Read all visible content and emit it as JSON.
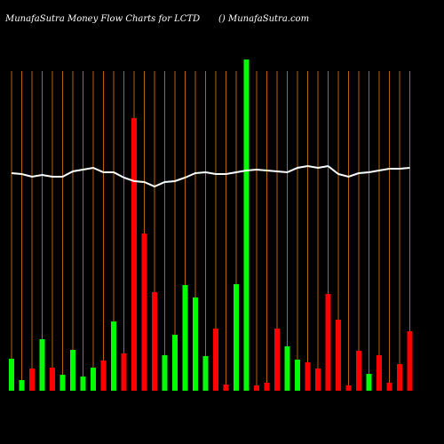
{
  "chart_data": {
    "type": "bar",
    "title": "MunafaSutra  Money Flow  Charts for LCTD",
    "subtitle": "() MunafaSutra.com",
    "categories": [
      null,
      null,
      null,
      null,
      null,
      null,
      null,
      null,
      null,
      null,
      null,
      null,
      null,
      null,
      null,
      null,
      null,
      null,
      null,
      null,
      null,
      null,
      null,
      null,
      null,
      null,
      null,
      null,
      null,
      null,
      null,
      null,
      null,
      null,
      null,
      null,
      null,
      null,
      null,
      null
    ],
    "values": [
      36,
      12,
      25,
      58,
      26,
      18,
      46,
      16,
      26,
      34,
      78,
      42,
      307,
      177,
      111,
      40,
      63,
      119,
      105,
      39,
      70,
      7,
      120,
      373,
      6,
      9,
      70,
      50,
      35,
      32,
      25,
      109,
      80,
      6,
      45,
      19,
      40,
      9,
      30,
      67
    ],
    "colors": [
      "#00ff00",
      "#00ff00",
      "#ff0000",
      "#00ff00",
      "#ff0000",
      "#00ff00",
      "#00ff00",
      "#00ff00",
      "#00ff00",
      "#ff0000",
      "#00ff00",
      "#ff0000",
      "#ff0000",
      "#ff0000",
      "#ff0000",
      "#00ff00",
      "#00ff00",
      "#00ff00",
      "#00ff00",
      "#00ff00",
      "#ff0000",
      "#ff0000",
      "#00ff00",
      "#00ff00",
      "#ff0000",
      "#ff0000",
      "#ff0000",
      "#00ff00",
      "#00ff00",
      "#ff0000",
      "#ff0000",
      "#ff0000",
      "#ff0000",
      "#ff0000",
      "#ff0000",
      "#00ff00",
      "#ff0000",
      "#ff0000",
      "#ff0000",
      "#ff0000"
    ],
    "line": [
      245,
      244,
      241,
      243,
      241,
      241,
      247,
      249,
      251,
      246,
      246,
      240,
      236,
      235,
      230,
      235,
      236,
      240,
      245,
      246,
      244,
      244,
      246,
      248,
      249,
      248,
      247,
      246,
      251,
      253,
      251,
      253,
      244,
      241,
      245,
      246,
      248,
      250,
      250,
      251
    ],
    "line_color": "#ffffff",
    "grid_color": "#b8620a",
    "ylim": [
      0,
      380
    ],
    "y2lim": [
      0,
      380
    ]
  }
}
